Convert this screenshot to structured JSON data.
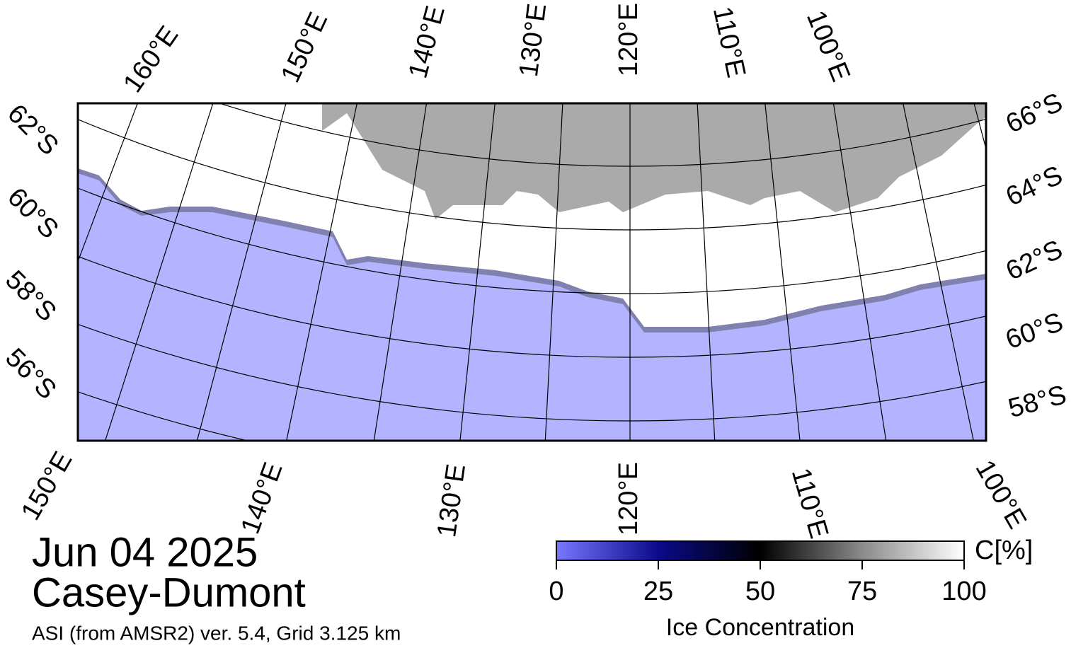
{
  "date": "Jun 04 2025",
  "region": "Casey-Dumont",
  "product": "ASI (from AMSR2) ver. 5.4,  Grid 3.125 km",
  "map": {
    "top_labels": [
      "160°E",
      "150°E",
      "140°E",
      "130°E",
      "120°E",
      "110°E",
      "100°E"
    ],
    "left_labels": [
      "62°S",
      "60°S",
      "58°S",
      "56°S"
    ],
    "right_labels": [
      "66°S",
      "64°S",
      "62°S",
      "60°S",
      "58°S"
    ],
    "bottom_labels": [
      "150°E",
      "140°E",
      "130°E",
      "120°E",
      "110°E",
      "100°E"
    ]
  },
  "colorbar": {
    "label": "Ice Concentration",
    "unit": "C[%]",
    "lim": [
      0,
      100
    ],
    "ticks": [
      0,
      25,
      50,
      75,
      100
    ]
  }
}
